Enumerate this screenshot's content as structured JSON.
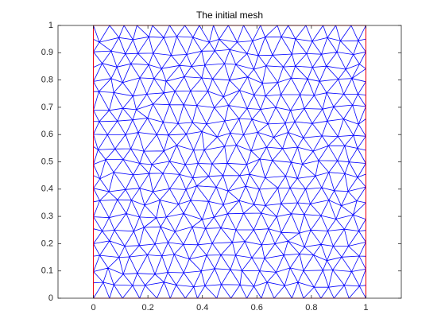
{
  "chart_data": {
    "type": "mesh",
    "title": "The initial mesh",
    "color": "#0000ff",
    "boundary": {
      "color": "#ff0000",
      "x": [
        0,
        1,
        1,
        0,
        0
      ],
      "y": [
        0,
        0,
        1,
        1,
        0
      ]
    },
    "xlim": [
      -0.13,
      1.13
    ],
    "ylim": [
      0,
      1
    ],
    "xticks": [
      0,
      0.2,
      0.4,
      0.6,
      0.8,
      1
    ],
    "yticks": [
      0,
      0.1,
      0.2,
      0.3,
      0.4,
      0.5,
      0.6,
      0.7,
      0.8,
      0.9,
      1
    ],
    "grid": false
  }
}
